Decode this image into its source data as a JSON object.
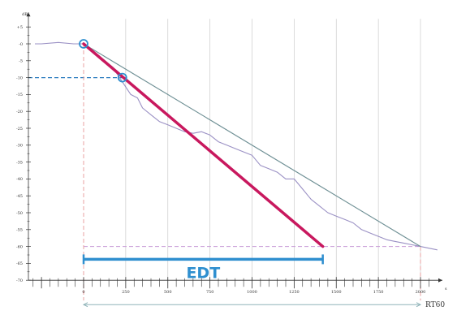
{
  "chart_data": {
    "type": "line",
    "x_unit": "s",
    "y_unit": "dB",
    "xlim": [
      -450,
      2100
    ],
    "ylim": [
      -70,
      5
    ],
    "x_ticks": [
      0,
      250,
      500,
      750,
      1000,
      1250,
      1500,
      1750,
      2000
    ],
    "x_tick_labels": [
      "0",
      "250",
      "500",
      "750",
      "1000",
      "1250",
      "1500",
      "1750",
      "2000"
    ],
    "y_ticks": [
      5,
      0,
      -5,
      -10,
      -15,
      -20,
      -25,
      -30,
      -35,
      -40,
      -45,
      -50,
      -55,
      -60,
      -65,
      -70
    ],
    "y_tick_labels": [
      "+5",
      "-0",
      "-5",
      "-10",
      "-15",
      "-20",
      "-25",
      "-30",
      "-35",
      "-40",
      "-45",
      "-50",
      "-55",
      "-60",
      "-65",
      "-70"
    ],
    "grid": "vertical",
    "decay_curve": {
      "x": [
        -450,
        -350,
        -250,
        -150,
        -60,
        0,
        50,
        100,
        150,
        175,
        200,
        240,
        280,
        320,
        350,
        400,
        450,
        500,
        550,
        600,
        650,
        700,
        750,
        800,
        850,
        900,
        950,
        1000,
        1050,
        1100,
        1150,
        1200,
        1250,
        1300,
        1350,
        1400,
        1450,
        1500,
        1550,
        1600,
        1650,
        1700,
        1750,
        1800,
        1850,
        1900,
        1950,
        2000,
        2050,
        2100
      ],
      "y": [
        0,
        0,
        0,
        0.4,
        0,
        0,
        -2,
        -4,
        -6,
        -7,
        -9,
        -12,
        -15,
        -16,
        -19,
        -21,
        -23,
        -24,
        -25,
        -26,
        -26.5,
        -26,
        -27,
        -29,
        -30,
        -31,
        -32,
        -33,
        -36,
        -37,
        -38,
        -40,
        -40,
        -43,
        -46,
        -48,
        -50,
        -51,
        -52,
        -53,
        -55,
        -56,
        -57,
        -58,
        -58.5,
        -59,
        -59.5,
        -60,
        -60.5,
        -61
      ]
    },
    "rt60_fit": {
      "x": [
        0,
        2000
      ],
      "y": [
        0,
        -60
      ]
    },
    "edt_fit": {
      "x": [
        0,
        1420
      ],
      "y": [
        0,
        -60
      ]
    },
    "edt_points": [
      {
        "x": 0,
        "y": 0
      },
      {
        "x": 230,
        "y": -10
      }
    ],
    "guide_lines": [
      {
        "type": "horizontal",
        "y": -10,
        "x": [
          -450,
          230
        ]
      },
      {
        "type": "horizontal",
        "y": -60,
        "x": [
          0,
          2000
        ]
      },
      {
        "type": "vertical",
        "x": 0,
        "y": [
          0,
          -76
        ]
      },
      {
        "type": "vertical",
        "x": 2000,
        "y": [
          -60,
          -76
        ]
      }
    ],
    "annotations": {
      "edt_label": "EDT",
      "edt_range": [
        0,
        1420
      ],
      "rt60_label": "RT60",
      "rt60_range": [
        0,
        2000
      ]
    },
    "colors": {
      "decay_curve": "#9a90c4",
      "rt60_fit": "#6e8f94",
      "edt_fit": "#c8185e",
      "edt_bracket": "#2f8fcf",
      "edt_markers": "#2f8fcf",
      "guides_red": "#e8a0a0",
      "guides_purple": "#c89ad8",
      "guide_blue": "#2f7fc0",
      "grid": "#cccccc",
      "axis": "#333333"
    }
  }
}
